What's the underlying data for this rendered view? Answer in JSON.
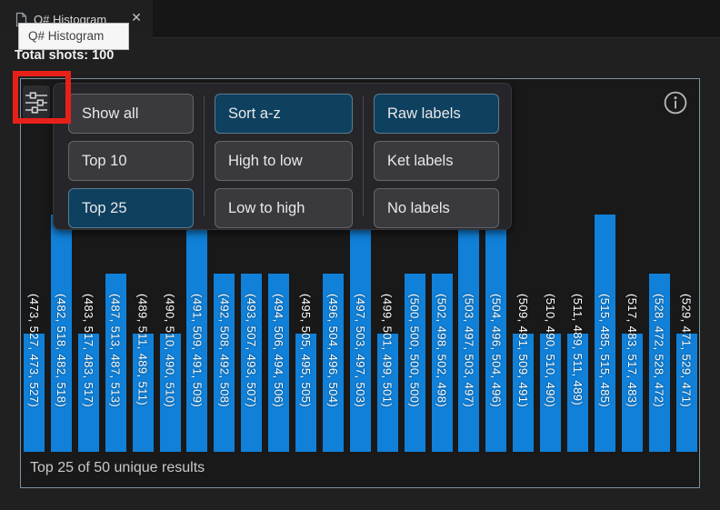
{
  "tab": {
    "title": "Q# Histogram",
    "close_glyph": "✕"
  },
  "tooltip": {
    "text": "Q# Histogram"
  },
  "summary": {
    "text": "Total shots: 100"
  },
  "toolbar": {
    "groups": [
      {
        "id": "count-filter",
        "buttons": [
          {
            "label": "Show all",
            "selected": false
          },
          {
            "label": "Top 10",
            "selected": false
          },
          {
            "label": "Top 25",
            "selected": true
          }
        ]
      },
      {
        "id": "sort-order",
        "buttons": [
          {
            "label": "Sort a-z",
            "selected": true
          },
          {
            "label": "High to low",
            "selected": false
          },
          {
            "label": "Low to high",
            "selected": false
          }
        ]
      },
      {
        "id": "label-style",
        "buttons": [
          {
            "label": "Raw labels",
            "selected": true
          },
          {
            "label": "Ket labels",
            "selected": false
          },
          {
            "label": "No labels",
            "selected": false
          }
        ]
      }
    ]
  },
  "icons": {
    "tab_file": "file-document-icon",
    "settings": "filter-sliders-icon",
    "info": "info-circle-icon",
    "close": "close-x-icon"
  },
  "footer": {
    "text": "Top 25 of 50 unique results"
  },
  "colors": {
    "bar": "#1080d8",
    "selected_button_bg": "#0e405f",
    "panel_border": "#7b93a1",
    "annotation_red": "#e7211a",
    "tooltip_bg": "#f6f6f6"
  },
  "chart_data": {
    "type": "bar",
    "title": "Q# Histogram",
    "total_shots": 100,
    "unique_results": 50,
    "bars_shown": 25,
    "xlabel": "",
    "ylabel": "",
    "ylim": [
      0,
      4
    ],
    "grid": false,
    "legend": "none",
    "bar_label_rotation_deg": 90,
    "categories": [
      "(473, 527, 473, 527)",
      "(482, 518, 482, 518)",
      "(483, 517, 483, 517)",
      "(487, 513, 487, 513)",
      "(489, 511, 489, 511)",
      "(490, 510, 490, 510)",
      "(491, 509, 491, 509)",
      "(492, 508, 492, 508)",
      "(493, 507, 493, 507)",
      "(494, 506, 494, 506)",
      "(495, 505, 495, 505)",
      "(496, 504, 496, 504)",
      "(497, 503, 497, 503)",
      "(499, 501, 499, 501)",
      "(500, 500, 500, 500)",
      "(502, 498, 502, 498)",
      "(503, 497, 503, 497)",
      "(504, 496, 504, 496)",
      "(509, 491, 509, 491)",
      "(510, 490, 510, 490)",
      "(511, 489, 511, 489)",
      "(515, 485, 515, 485)",
      "(517, 483, 517, 483)",
      "(528, 472, 528, 472)",
      "(529, 471, 529, 471)"
    ],
    "values": [
      2,
      4,
      2,
      3,
      2,
      2,
      4,
      3,
      3,
      3,
      2,
      3,
      4,
      2,
      3,
      3,
      4,
      4,
      2,
      2,
      2,
      4,
      2,
      3,
      2
    ]
  }
}
